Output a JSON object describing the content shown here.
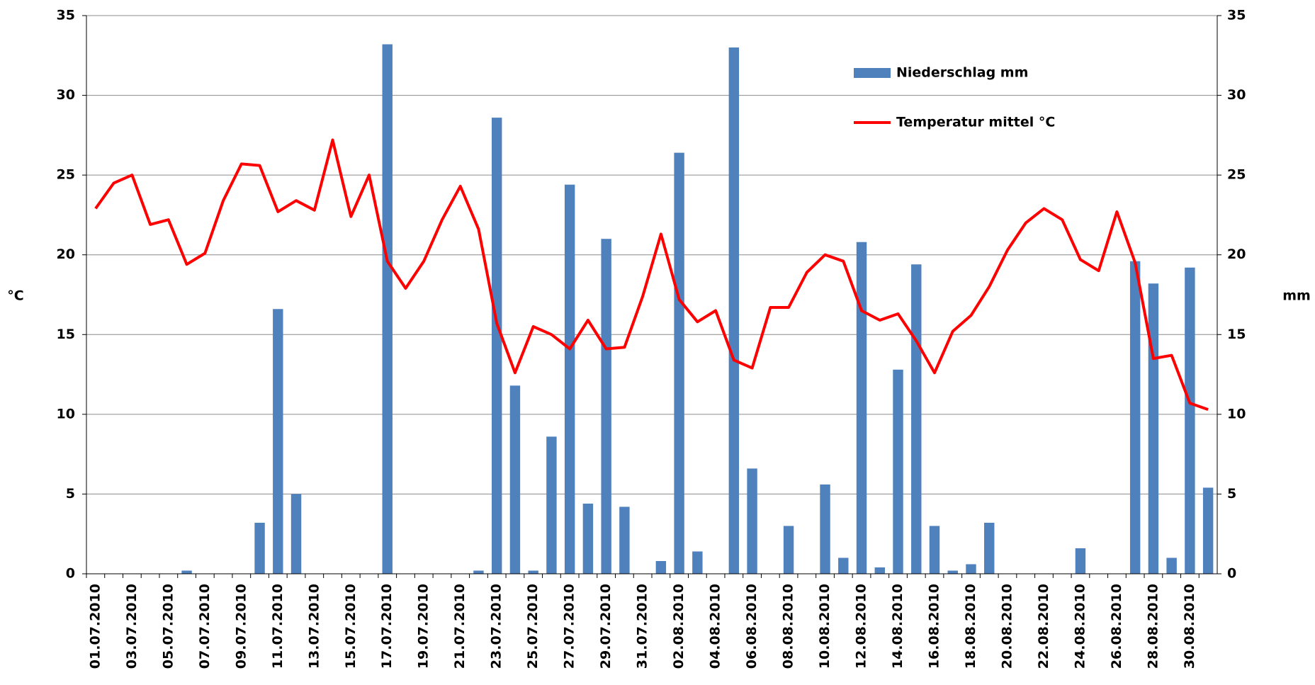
{
  "chart_data": {
    "type": "bar",
    "y_label": "°C",
    "y2_label": "mm",
    "categories": [
      "01.07.2010",
      null,
      "03.07.2010",
      null,
      "05.07.2010",
      null,
      "07.07.2010",
      null,
      "09.07.2010",
      null,
      "11.07.2010",
      null,
      "13.07.2010",
      null,
      "15.07.2010",
      null,
      "17.07.2010",
      null,
      "19.07.2010",
      null,
      "21.07.2010",
      null,
      "23.07.2010",
      null,
      "25.07.2010",
      null,
      "27.07.2010",
      null,
      "29.07.2010",
      null,
      "31.07.2010",
      null,
      "02.08.2010",
      null,
      "04.08.2010",
      null,
      "06.08.2010",
      null,
      "08.08.2010",
      null,
      "10.08.2010",
      null,
      "12.08.2010",
      null,
      "14.08.2010",
      null,
      "16.08.2010",
      null,
      "18.08.2010",
      null,
      "20.08.2010",
      null,
      "22.08.2010",
      null,
      "24.08.2010",
      null,
      "26.08.2010",
      null,
      "28.08.2010",
      null,
      "30.08.2010",
      null
    ],
    "series": [
      {
        "name": "Niederschlag mm",
        "type": "bar",
        "axis": "y2",
        "color": "#4f81bd",
        "values": [
          0,
          0,
          0,
          0,
          0,
          0.2,
          0,
          0,
          0,
          3.2,
          16.6,
          5.0,
          0,
          0,
          0,
          0,
          33.2,
          0,
          0,
          0,
          0,
          0.2,
          28.6,
          11.8,
          0.2,
          8.6,
          24.4,
          4.4,
          21.0,
          4.2,
          0,
          0.8,
          26.4,
          1.4,
          0,
          33.0,
          6.6,
          0,
          3.0,
          0,
          5.6,
          1.0,
          20.8,
          0.4,
          12.8,
          19.4,
          3.0,
          0.2,
          0.6,
          3.2,
          0,
          0,
          0,
          0,
          1.6,
          0,
          0,
          19.6,
          18.2,
          1.0,
          19.2,
          5.4
        ]
      },
      {
        "name": "Temperatur mittel °C",
        "type": "line",
        "color": "#ff0000",
        "values": [
          22.9,
          24.5,
          25.0,
          21.9,
          22.2,
          19.4,
          20.1,
          23.4,
          25.7,
          25.6,
          22.7,
          23.4,
          22.8,
          27.2,
          22.4,
          25.0,
          19.6,
          17.9,
          19.6,
          22.2,
          24.3,
          21.6,
          15.7,
          12.6,
          15.5,
          15.0,
          14.1,
          15.9,
          14.1,
          14.2,
          17.4,
          21.3,
          17.2,
          15.8,
          16.5,
          13.4,
          12.9,
          16.7,
          16.7,
          18.9,
          20.0,
          19.6,
          16.5,
          15.9,
          16.3,
          14.6,
          12.6,
          15.2,
          16.2,
          18.0,
          20.3,
          22.0,
          22.9,
          22.2,
          19.7,
          19.0,
          22.7,
          19.5,
          13.5,
          13.7,
          10.7,
          10.3
        ]
      }
    ],
    "ylim": [
      0,
      35
    ],
    "yticks": [
      0,
      5,
      10,
      15,
      20,
      25,
      30,
      35
    ],
    "y2lim": [
      0,
      35
    ],
    "y2ticks": [
      0,
      5,
      10,
      15,
      20,
      25,
      30,
      35
    ],
    "grid": true,
    "legend": "top-right"
  }
}
